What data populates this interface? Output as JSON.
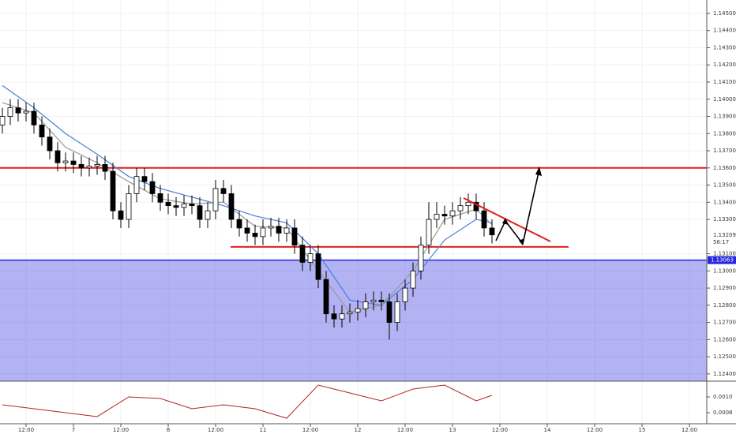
{
  "chart_data": {
    "type": "candlestick",
    "x": [
      6,
      8,
      10,
      12,
      14,
      16,
      18,
      20,
      22,
      24,
      26,
      28,
      30,
      32,
      34,
      36,
      38,
      40,
      42,
      44,
      46,
      48,
      50,
      52,
      54,
      56,
      58,
      60,
      62,
      64,
      66,
      68,
      70,
      72,
      74,
      76,
      78,
      80,
      82,
      84,
      86,
      88,
      90,
      92,
      94,
      96,
      98,
      100,
      102,
      104,
      106,
      108,
      110,
      112,
      114,
      116,
      118,
      120,
      122,
      124,
      126,
      128,
      130
    ],
    "open": [
      1.1385,
      1.139,
      1.1395,
      1.1392,
      1.1393,
      1.1385,
      1.1378,
      1.137,
      1.1363,
      1.1364,
      1.1362,
      1.136,
      1.1361,
      1.1362,
      1.1358,
      1.1335,
      1.133,
      1.1345,
      1.1355,
      1.1352,
      1.1345,
      1.134,
      1.1338,
      1.1337,
      1.1339,
      1.1338,
      1.133,
      1.1335,
      1.1348,
      1.1345,
      1.133,
      1.1325,
      1.1322,
      1.132,
      1.1325,
      1.1326,
      1.1322,
      1.1325,
      1.1315,
      1.1305,
      1.131,
      1.1295,
      1.1275,
      1.1272,
      1.1275,
      1.1276,
      1.1278,
      1.1282,
      1.1283,
      1.1282,
      1.127,
      1.1282,
      1.129,
      1.13,
      1.1315,
      1.133,
      1.1333,
      1.1332,
      1.1335,
      1.1338,
      1.134,
      1.1335,
      1.1325
    ],
    "high": [
      1.1395,
      1.14,
      1.14,
      1.1398,
      1.1398,
      1.139,
      1.1383,
      1.1375,
      1.1369,
      1.1369,
      1.1367,
      1.1366,
      1.1367,
      1.1367,
      1.1363,
      1.134,
      1.135,
      1.136,
      1.136,
      1.1357,
      1.135,
      1.1345,
      1.1343,
      1.1344,
      1.1344,
      1.1343,
      1.134,
      1.1353,
      1.1353,
      1.135,
      1.1335,
      1.133,
      1.1327,
      1.133,
      1.1331,
      1.1331,
      1.133,
      1.133,
      1.132,
      1.1315,
      1.1315,
      1.13,
      1.128,
      1.128,
      1.1281,
      1.1283,
      1.1287,
      1.1288,
      1.1288,
      1.1287,
      1.1287,
      1.1295,
      1.1305,
      1.132,
      1.134,
      1.134,
      1.1338,
      1.134,
      1.1343,
      1.1345,
      1.1345,
      1.134,
      1.133
    ],
    "low": [
      1.138,
      1.1385,
      1.1387,
      1.1387,
      1.138,
      1.1373,
      1.1365,
      1.1358,
      1.1358,
      1.1357,
      1.1355,
      1.1355,
      1.1356,
      1.1353,
      1.133,
      1.1325,
      1.1325,
      1.134,
      1.1347,
      1.134,
      1.1335,
      1.1333,
      1.1332,
      1.1332,
      1.1333,
      1.1325,
      1.1325,
      1.133,
      1.134,
      1.1325,
      1.132,
      1.1317,
      1.1315,
      1.1315,
      1.132,
      1.1317,
      1.1317,
      1.131,
      1.13,
      1.13,
      1.129,
      1.127,
      1.1267,
      1.1267,
      1.127,
      1.1271,
      1.1273,
      1.1277,
      1.1277,
      1.126,
      1.1265,
      1.1277,
      1.1285,
      1.1295,
      1.131,
      1.1325,
      1.1327,
      1.1327,
      1.133,
      1.1333,
      1.133,
      1.132,
      1.1316
    ],
    "close": [
      1.139,
      1.1395,
      1.1392,
      1.1393,
      1.1385,
      1.1378,
      1.137,
      1.1363,
      1.1364,
      1.1362,
      1.136,
      1.1361,
      1.1362,
      1.1358,
      1.1335,
      1.133,
      1.1345,
      1.1355,
      1.1352,
      1.1345,
      1.134,
      1.1338,
      1.1337,
      1.1339,
      1.1338,
      1.133,
      1.1335,
      1.1348,
      1.1345,
      1.133,
      1.1325,
      1.1322,
      1.132,
      1.1325,
      1.1326,
      1.1322,
      1.1325,
      1.1315,
      1.1305,
      1.131,
      1.1295,
      1.1275,
      1.1272,
      1.1275,
      1.1276,
      1.1278,
      1.1282,
      1.1283,
      1.1282,
      1.127,
      1.1282,
      1.129,
      1.13,
      1.1315,
      1.133,
      1.1333,
      1.1332,
      1.1335,
      1.1338,
      1.134,
      1.1335,
      1.1325,
      1.1321
    ],
    "xlim": [
      5.4,
      184.4
    ],
    "xticks": [
      {
        "value": 12,
        "label": "12:00"
      },
      {
        "value": 24,
        "label": "7"
      },
      {
        "value": 36,
        "label": "12:00"
      },
      {
        "value": 48,
        "label": "8"
      },
      {
        "value": 60,
        "label": "12:00"
      },
      {
        "value": 72,
        "label": "11"
      },
      {
        "value": 84,
        "label": "12:00"
      },
      {
        "value": 96,
        "label": "12"
      },
      {
        "value": 108,
        "label": "12:00"
      },
      {
        "value": 120,
        "label": "13"
      },
      {
        "value": 132,
        "label": "12:00"
      },
      {
        "value": 144,
        "label": "14"
      },
      {
        "value": 156,
        "label": "12:00"
      },
      {
        "value": 168,
        "label": "15"
      },
      {
        "value": 180,
        "label": "12:00"
      }
    ],
    "ylim": [
      1.12358,
      1.14578
    ],
    "yticks": [
      {
        "value": 1.124,
        "label": "1.12400"
      },
      {
        "value": 1.125,
        "label": "1.12500"
      },
      {
        "value": 1.126,
        "label": "1.12600"
      },
      {
        "value": 1.127,
        "label": "1.12700"
      },
      {
        "value": 1.128,
        "label": "1.12800"
      },
      {
        "value": 1.129,
        "label": "1.12900"
      },
      {
        "value": 1.13,
        "label": "1.13000"
      },
      {
        "value": 1.131,
        "label": "1.13100"
      },
      {
        "value": 1.133,
        "label": "1.13300"
      },
      {
        "value": 1.134,
        "label": "1.13400"
      },
      {
        "value": 1.135,
        "label": "1.13500"
      },
      {
        "value": 1.136,
        "label": "1.13600"
      },
      {
        "value": 1.137,
        "label": "1.13700"
      },
      {
        "value": 1.138,
        "label": "1.13800"
      },
      {
        "value": 1.139,
        "label": "1.13900"
      },
      {
        "value": 1.14,
        "label": "1.14000"
      },
      {
        "value": 1.141,
        "label": "1.14100"
      },
      {
        "value": 1.142,
        "label": "1.14200"
      },
      {
        "value": 1.143,
        "label": "1.14300"
      },
      {
        "value": 1.144,
        "label": "1.14400"
      },
      {
        "value": 1.145,
        "label": "1.14500"
      }
    ],
    "moving_averages": [
      {
        "color": "#4a7fd6",
        "x": [
          6,
          14,
          22,
          30,
          38,
          46,
          54,
          62,
          70,
          78,
          86,
          94,
          102,
          110,
          118,
          126,
          130
        ],
        "values": [
          1.1408,
          1.1395,
          1.138,
          1.1368,
          1.1355,
          1.1348,
          1.1343,
          1.1338,
          1.1332,
          1.1328,
          1.131,
          1.1283,
          1.128,
          1.1295,
          1.1318,
          1.133,
          1.1328
        ]
      },
      {
        "color": "#999999",
        "x": [
          6,
          14,
          22,
          30,
          38,
          46,
          54,
          62,
          70,
          78,
          86,
          94,
          102,
          110,
          118,
          126,
          130
        ],
        "values": [
          1.1398,
          1.1392,
          1.1372,
          1.1363,
          1.1352,
          1.1342,
          1.1339,
          1.134,
          1.1326,
          1.1325,
          1.13,
          1.1276,
          1.128,
          1.13,
          1.133,
          1.1336,
          1.1327
        ]
      }
    ],
    "oscillator": {
      "color": "#b22222",
      "x": [
        6,
        14,
        22,
        30,
        38,
        46,
        54,
        62,
        70,
        78,
        86,
        94,
        102,
        110,
        118,
        126,
        130
      ],
      "values": [
        0.0009,
        0.00085,
        0.0008,
        0.00075,
        0.001,
        0.00098,
        0.00085,
        0.0009,
        0.00085,
        0.00073,
        0.00115,
        0.00105,
        0.00095,
        0.0011,
        0.00115,
        0.00095,
        0.00102
      ],
      "ylim": [
        0.00066,
        0.0012
      ],
      "yticks": [
        {
          "value": 0.001,
          "label": "0.0010"
        },
        {
          "value": 0.0008,
          "label": "0.0008"
        }
      ]
    },
    "levels": [
      {
        "value": 1.136,
        "color": "#e0201b"
      },
      {
        "value": 1.1314,
        "color": "#e0201b"
      }
    ],
    "last_price": {
      "value": 1.13209,
      "label": "1.13209"
    },
    "countdown": "56:17",
    "marker_price": {
      "value": 1.13063,
      "label": "1.13063",
      "color": "#2626e0"
    }
  }
}
